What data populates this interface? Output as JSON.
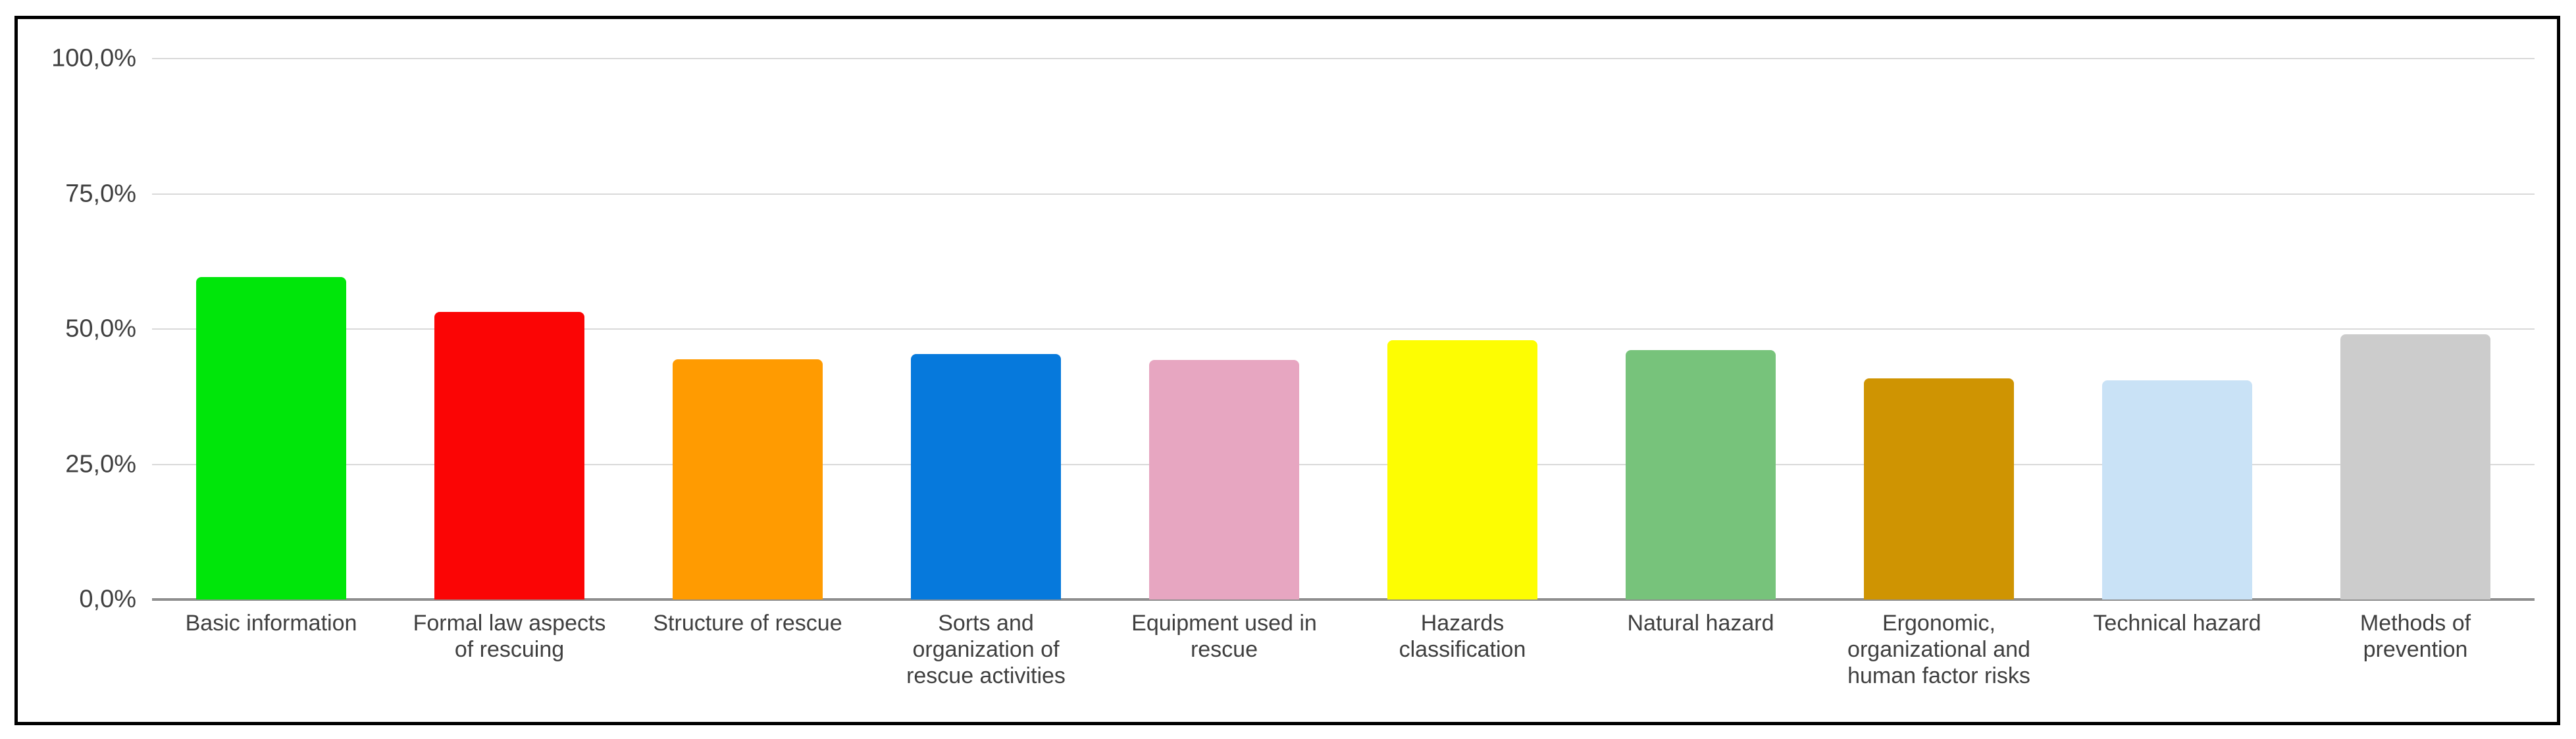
{
  "chart_data": {
    "type": "bar",
    "title": "",
    "xlabel": "",
    "ylabel": "",
    "ylim": [
      0,
      100
    ],
    "grid": true,
    "legend": "none",
    "value_format": "percent-comma-decimal",
    "yticks": [
      {
        "label": "100,0%",
        "value": 100
      },
      {
        "label": "75,0%",
        "value": 75
      },
      {
        "label": "50,0%",
        "value": 50
      },
      {
        "label": "25,0%",
        "value": 25
      },
      {
        "label": "0,0%",
        "value": 0
      }
    ],
    "categories": [
      "Basic information",
      "Formal law aspects\nof rescuing",
      "Structure of rescue",
      "Sorts and\norganization of\nrescue activities",
      "Equipment used in\nrescue",
      "Hazards\nclassification",
      "Natural hazard",
      "Ergonomic,\norganizational and\nhuman factor risks",
      "Technical hazard",
      "Methods of\nprevention"
    ],
    "values": [
      59.6,
      53.2,
      44.4,
      45.4,
      44.3,
      47.9,
      46.1,
      40.9,
      40.5,
      49.0
    ],
    "bar_colors": [
      "#00e60a",
      "#fb0505",
      "#ff9b01",
      "#0679dc",
      "#e7a6c1",
      "#fdfd02",
      "#77c37b",
      "#cf9402",
      "#c9e2f6",
      "#cccccc"
    ]
  },
  "colors": {
    "background": "#ffffff",
    "frame_border": "#000000",
    "gridline": "#d9d9d9",
    "axis_line": "#8e8e8e",
    "text": "#3f3f3f"
  }
}
